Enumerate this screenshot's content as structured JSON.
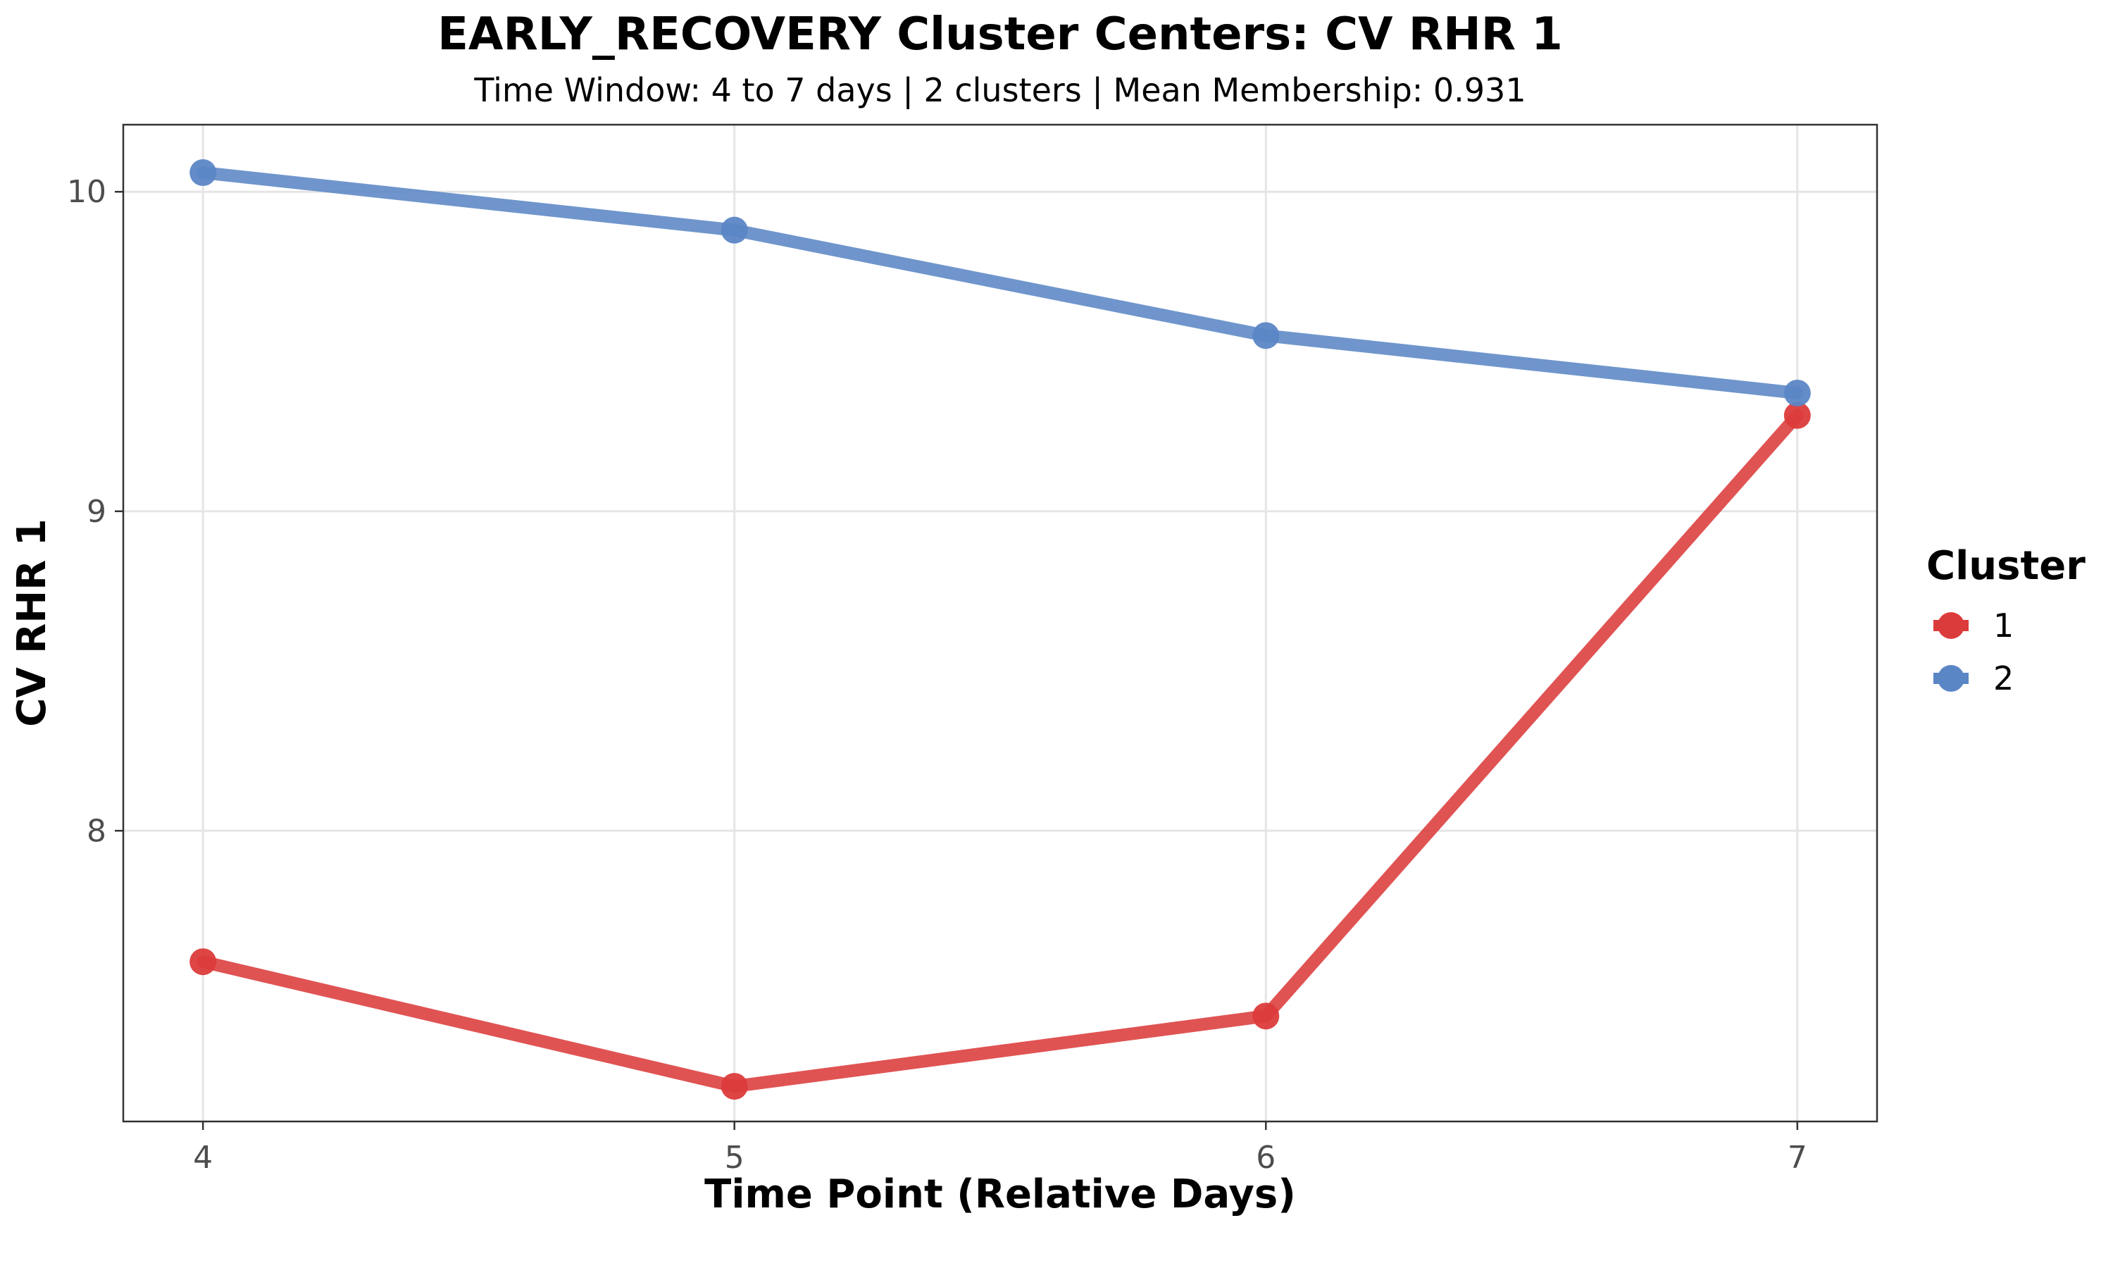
{
  "chart_data": {
    "type": "line",
    "title": "EARLY_RECOVERY Cluster Centers: CV RHR 1",
    "subtitle": "Time Window: 4 to 7 days | 2 clusters | Mean Membership: 0.931",
    "xlabel": "Time Point (Relative Days)",
    "ylabel": "CV RHR 1",
    "x": [
      4,
      5,
      6,
      7
    ],
    "xlim": [
      3.85,
      7.15
    ],
    "ylim": [
      7.09,
      10.21
    ],
    "x_ticks": [
      "4",
      "5",
      "6",
      "7"
    ],
    "y_ticks": [
      8,
      9,
      10
    ],
    "grid": true,
    "legend": {
      "title": "Cluster",
      "placement": "right"
    },
    "series": [
      {
        "name": "1",
        "color": "#dc3b3b",
        "values": [
          7.59,
          7.2,
          7.42,
          9.3
        ]
      },
      {
        "name": "2",
        "color": "#5b86c5",
        "values": [
          10.06,
          9.88,
          9.55,
          9.37
        ]
      }
    ]
  }
}
